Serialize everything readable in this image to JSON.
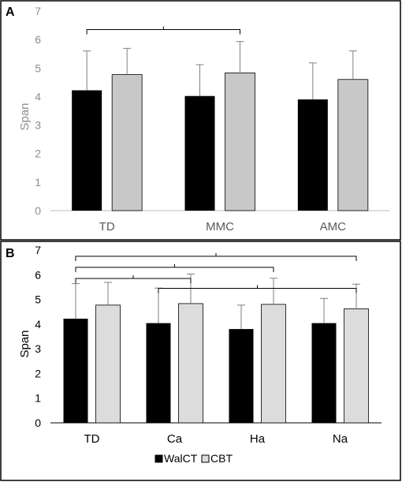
{
  "colors": {
    "walct": "#000000",
    "cbt": "#c8c8c8",
    "cbt_b": "#dcdcdc",
    "axis": "#bfbfbf",
    "text": "#595959",
    "text_dark": "#000000",
    "frame": "#000000"
  },
  "chart_data": [
    {
      "panel_label": "A",
      "type": "bar",
      "title": "",
      "ylabel": "Span",
      "xlabel": "",
      "ylim": [
        0,
        7
      ],
      "yticks": [
        "0",
        "1",
        "2",
        "3",
        "4",
        "5",
        "6",
        "7"
      ],
      "categories": [
        "TD",
        "MMC",
        "AMC"
      ],
      "series": [
        {
          "name": "WalCT",
          "values": [
            4.22,
            4.02,
            3.9
          ],
          "errors": [
            1.38,
            1.1,
            1.28
          ]
        },
        {
          "name": "CBT",
          "values": [
            4.77,
            4.83,
            4.6
          ],
          "errors": [
            0.92,
            1.1,
            1.0
          ]
        }
      ],
      "comparisons": [
        {
          "from": 0,
          "to": 1,
          "y": 6.35
        }
      ],
      "grid": false,
      "legend": "none"
    },
    {
      "panel_label": "B",
      "type": "bar",
      "title": "",
      "ylabel": "Span",
      "xlabel": "",
      "ylim": [
        0,
        7
      ],
      "yticks": [
        "0",
        "1",
        "2",
        "3",
        "4",
        "5",
        "6",
        "7"
      ],
      "categories": [
        "TD",
        "Ca",
        "Ha",
        "Na"
      ],
      "series": [
        {
          "name": "WalCT",
          "values": [
            4.22,
            4.04,
            3.8,
            4.04
          ],
          "errors": [
            1.42,
            1.42,
            0.97,
            1.0
          ]
        },
        {
          "name": "CBT",
          "values": [
            4.77,
            4.83,
            4.8,
            4.62
          ],
          "errors": [
            0.92,
            1.2,
            1.06,
            1.0
          ]
        }
      ],
      "comparisons": [
        {
          "from": 0,
          "to": 3,
          "y": 6.75
        },
        {
          "from": 0,
          "to": 2,
          "y": 6.3
        },
        {
          "from": 0,
          "to": 1,
          "y": 5.85
        },
        {
          "from": 1,
          "to": 3,
          "y": 5.45
        }
      ],
      "grid": false,
      "legend": "bottom"
    }
  ],
  "legend": {
    "items": [
      {
        "label": "WalCT",
        "color_key": "walct"
      },
      {
        "label": "CBT",
        "color_key": "cbt_b"
      }
    ]
  }
}
